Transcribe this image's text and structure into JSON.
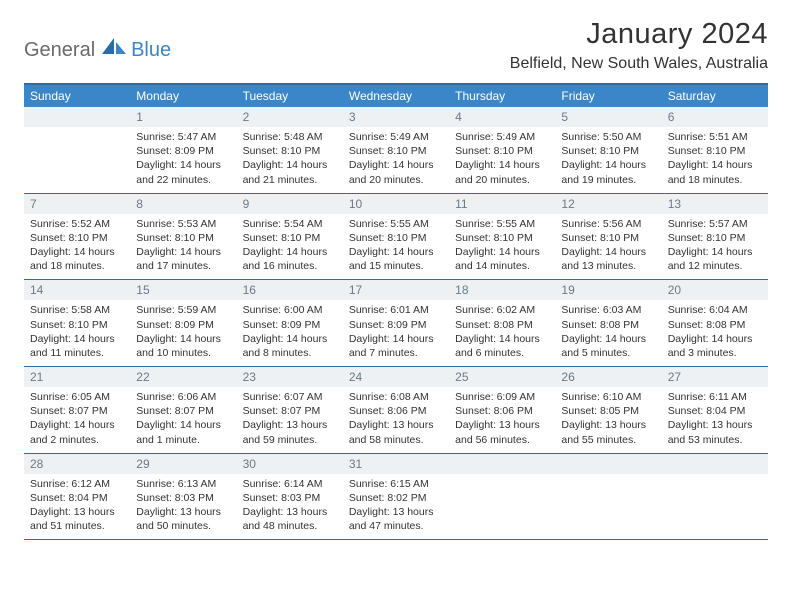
{
  "logo": {
    "gray": "General",
    "blue": "Blue"
  },
  "title": "January 2024",
  "location": "Belfield, New South Wales, Australia",
  "colors": {
    "header_bg": "#3a86c8",
    "header_border": "#2a6ea8",
    "daynum_bg": "#eef1f3",
    "daynum_color": "#6a7a87",
    "text": "#333333",
    "logo_gray": "#6a6a6a",
    "logo_blue": "#3a86c8"
  },
  "dayNames": [
    "Sunday",
    "Monday",
    "Tuesday",
    "Wednesday",
    "Thursday",
    "Friday",
    "Saturday"
  ],
  "weeks": [
    [
      {
        "n": "",
        "sr": "",
        "ss": "",
        "dl": ""
      },
      {
        "n": "1",
        "sr": "Sunrise: 5:47 AM",
        "ss": "Sunset: 8:09 PM",
        "dl": "Daylight: 14 hours and 22 minutes."
      },
      {
        "n": "2",
        "sr": "Sunrise: 5:48 AM",
        "ss": "Sunset: 8:10 PM",
        "dl": "Daylight: 14 hours and 21 minutes."
      },
      {
        "n": "3",
        "sr": "Sunrise: 5:49 AM",
        "ss": "Sunset: 8:10 PM",
        "dl": "Daylight: 14 hours and 20 minutes."
      },
      {
        "n": "4",
        "sr": "Sunrise: 5:49 AM",
        "ss": "Sunset: 8:10 PM",
        "dl": "Daylight: 14 hours and 20 minutes."
      },
      {
        "n": "5",
        "sr": "Sunrise: 5:50 AM",
        "ss": "Sunset: 8:10 PM",
        "dl": "Daylight: 14 hours and 19 minutes."
      },
      {
        "n": "6",
        "sr": "Sunrise: 5:51 AM",
        "ss": "Sunset: 8:10 PM",
        "dl": "Daylight: 14 hours and 18 minutes."
      }
    ],
    [
      {
        "n": "7",
        "sr": "Sunrise: 5:52 AM",
        "ss": "Sunset: 8:10 PM",
        "dl": "Daylight: 14 hours and 18 minutes."
      },
      {
        "n": "8",
        "sr": "Sunrise: 5:53 AM",
        "ss": "Sunset: 8:10 PM",
        "dl": "Daylight: 14 hours and 17 minutes."
      },
      {
        "n": "9",
        "sr": "Sunrise: 5:54 AM",
        "ss": "Sunset: 8:10 PM",
        "dl": "Daylight: 14 hours and 16 minutes."
      },
      {
        "n": "10",
        "sr": "Sunrise: 5:55 AM",
        "ss": "Sunset: 8:10 PM",
        "dl": "Daylight: 14 hours and 15 minutes."
      },
      {
        "n": "11",
        "sr": "Sunrise: 5:55 AM",
        "ss": "Sunset: 8:10 PM",
        "dl": "Daylight: 14 hours and 14 minutes."
      },
      {
        "n": "12",
        "sr": "Sunrise: 5:56 AM",
        "ss": "Sunset: 8:10 PM",
        "dl": "Daylight: 14 hours and 13 minutes."
      },
      {
        "n": "13",
        "sr": "Sunrise: 5:57 AM",
        "ss": "Sunset: 8:10 PM",
        "dl": "Daylight: 14 hours and 12 minutes."
      }
    ],
    [
      {
        "n": "14",
        "sr": "Sunrise: 5:58 AM",
        "ss": "Sunset: 8:10 PM",
        "dl": "Daylight: 14 hours and 11 minutes."
      },
      {
        "n": "15",
        "sr": "Sunrise: 5:59 AM",
        "ss": "Sunset: 8:09 PM",
        "dl": "Daylight: 14 hours and 10 minutes."
      },
      {
        "n": "16",
        "sr": "Sunrise: 6:00 AM",
        "ss": "Sunset: 8:09 PM",
        "dl": "Daylight: 14 hours and 8 minutes."
      },
      {
        "n": "17",
        "sr": "Sunrise: 6:01 AM",
        "ss": "Sunset: 8:09 PM",
        "dl": "Daylight: 14 hours and 7 minutes."
      },
      {
        "n": "18",
        "sr": "Sunrise: 6:02 AM",
        "ss": "Sunset: 8:08 PM",
        "dl": "Daylight: 14 hours and 6 minutes."
      },
      {
        "n": "19",
        "sr": "Sunrise: 6:03 AM",
        "ss": "Sunset: 8:08 PM",
        "dl": "Daylight: 14 hours and 5 minutes."
      },
      {
        "n": "20",
        "sr": "Sunrise: 6:04 AM",
        "ss": "Sunset: 8:08 PM",
        "dl": "Daylight: 14 hours and 3 minutes."
      }
    ],
    [
      {
        "n": "21",
        "sr": "Sunrise: 6:05 AM",
        "ss": "Sunset: 8:07 PM",
        "dl": "Daylight: 14 hours and 2 minutes."
      },
      {
        "n": "22",
        "sr": "Sunrise: 6:06 AM",
        "ss": "Sunset: 8:07 PM",
        "dl": "Daylight: 14 hours and 1 minute."
      },
      {
        "n": "23",
        "sr": "Sunrise: 6:07 AM",
        "ss": "Sunset: 8:07 PM",
        "dl": "Daylight: 13 hours and 59 minutes."
      },
      {
        "n": "24",
        "sr": "Sunrise: 6:08 AM",
        "ss": "Sunset: 8:06 PM",
        "dl": "Daylight: 13 hours and 58 minutes."
      },
      {
        "n": "25",
        "sr": "Sunrise: 6:09 AM",
        "ss": "Sunset: 8:06 PM",
        "dl": "Daylight: 13 hours and 56 minutes."
      },
      {
        "n": "26",
        "sr": "Sunrise: 6:10 AM",
        "ss": "Sunset: 8:05 PM",
        "dl": "Daylight: 13 hours and 55 minutes."
      },
      {
        "n": "27",
        "sr": "Sunrise: 6:11 AM",
        "ss": "Sunset: 8:04 PM",
        "dl": "Daylight: 13 hours and 53 minutes."
      }
    ],
    [
      {
        "n": "28",
        "sr": "Sunrise: 6:12 AM",
        "ss": "Sunset: 8:04 PM",
        "dl": "Daylight: 13 hours and 51 minutes."
      },
      {
        "n": "29",
        "sr": "Sunrise: 6:13 AM",
        "ss": "Sunset: 8:03 PM",
        "dl": "Daylight: 13 hours and 50 minutes."
      },
      {
        "n": "30",
        "sr": "Sunrise: 6:14 AM",
        "ss": "Sunset: 8:03 PM",
        "dl": "Daylight: 13 hours and 48 minutes."
      },
      {
        "n": "31",
        "sr": "Sunrise: 6:15 AM",
        "ss": "Sunset: 8:02 PM",
        "dl": "Daylight: 13 hours and 47 minutes."
      },
      {
        "n": "",
        "sr": "",
        "ss": "",
        "dl": ""
      },
      {
        "n": "",
        "sr": "",
        "ss": "",
        "dl": ""
      },
      {
        "n": "",
        "sr": "",
        "ss": "",
        "dl": ""
      }
    ]
  ]
}
